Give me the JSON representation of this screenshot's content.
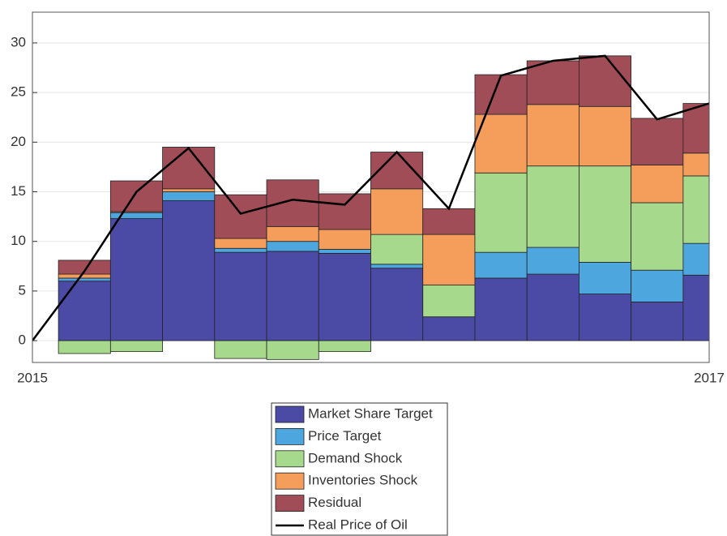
{
  "chart_data": {
    "type": "bar",
    "stacked": true,
    "x": [
      0,
      1,
      2,
      3,
      4,
      5,
      6,
      7,
      8,
      9,
      10,
      11,
      12,
      13
    ],
    "series": [
      {
        "name": "Market Share Target",
        "color": "#4b4ba5",
        "values": [
          null,
          6.0,
          12.3,
          14.1,
          8.9,
          9.0,
          8.8,
          7.3,
          2.4,
          6.3,
          6.7,
          4.7,
          3.9,
          6.6
        ]
      },
      {
        "name": "Price Target",
        "color": "#4ea6df",
        "values": [
          null,
          0.3,
          0.6,
          0.9,
          0.4,
          1.0,
          0.4,
          0.4,
          0,
          2.6,
          2.7,
          3.2,
          3.2,
          3.2
        ]
      },
      {
        "name": "Demand Shock",
        "color": "#a7d98d",
        "values": [
          null,
          -1.3,
          -1.1,
          0,
          -1.8,
          -1.9,
          -1.1,
          3.0,
          3.2,
          8.0,
          8.2,
          9.7,
          6.8,
          6.8
        ]
      },
      {
        "name": "Inventories Shock",
        "color": "#f59d5b",
        "values": [
          null,
          0.4,
          0.1,
          0.3,
          1.0,
          1.5,
          2.0,
          4.6,
          5.1,
          5.9,
          6.2,
          6.0,
          3.8,
          2.3
        ]
      },
      {
        "name": "Residual",
        "color": "#a04d57",
        "values": [
          null,
          1.4,
          3.1,
          4.2,
          4.4,
          4.7,
          3.6,
          3.7,
          2.6,
          4.0,
          4.4,
          5.1,
          4.7,
          5.0
        ]
      },
      {
        "name": "Real Price of Oil",
        "color": "#000000",
        "type": "line",
        "values": [
          0,
          7.0,
          15.0,
          19.4,
          12.8,
          14.2,
          13.7,
          19.0,
          13.3,
          26.7,
          28.2,
          28.7,
          22.3,
          23.9
        ]
      }
    ],
    "xlim": [
      0,
      13
    ],
    "xticks": [
      {
        "value": 0,
        "label": "2015"
      },
      {
        "value": 13,
        "label": "2017"
      }
    ],
    "ylim": [
      -2.2,
      33.1
    ],
    "yticks": [
      0,
      5,
      10,
      15,
      20,
      25,
      30
    ],
    "grid": true,
    "legend": "bottom"
  }
}
